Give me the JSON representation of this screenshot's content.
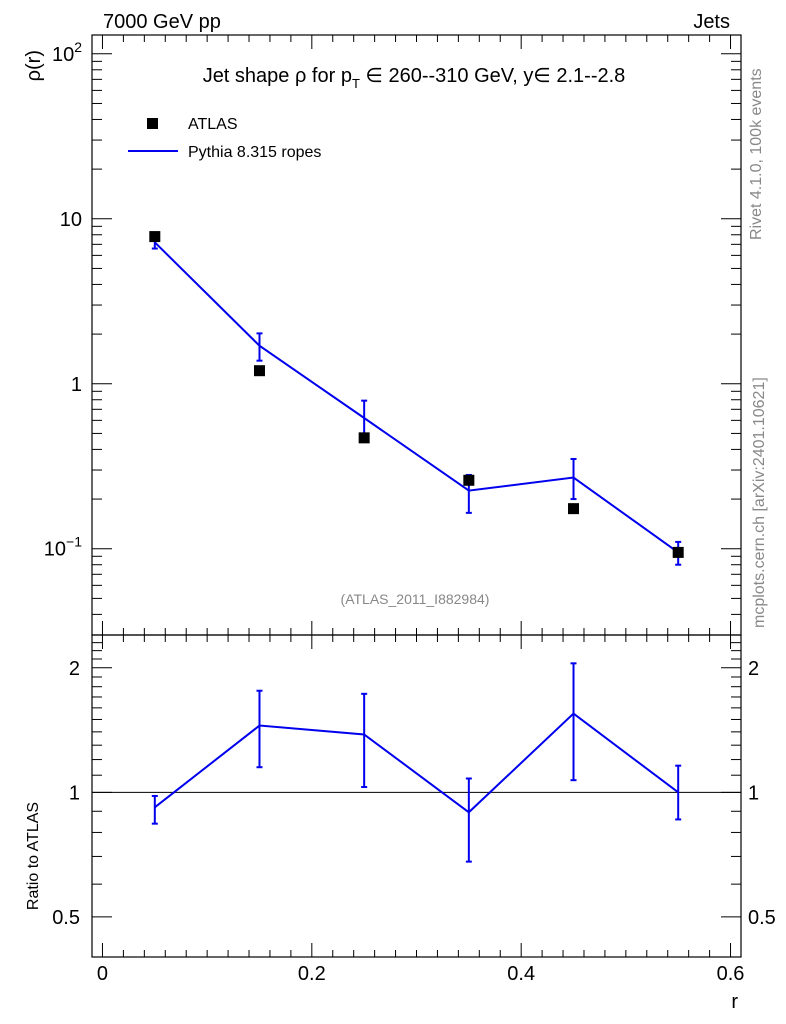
{
  "header": {
    "left": "7000 GeV pp",
    "right": "Jets"
  },
  "side_text": {
    "rivet": "Rivet 4.1.0,  100k events",
    "mcplots": "mcplots.cern.ch [arXiv:2401.10621]"
  },
  "watermark": "(ATLAS_2011_I882984)",
  "colors": {
    "mc": "#0000ee",
    "data": "#000000",
    "grey": "#888888"
  },
  "chart_data": [
    {
      "type": "line",
      "title_parts": {
        "pre": "Jet shape ",
        "rho": "ρ",
        "for": " for p",
        "sub": "T",
        "elem": " ∈ ",
        "range": "260--310 GeV, y",
        "elem2": "∈ ",
        "yrange": "2.1--2.8"
      },
      "ylabel": "ρ(r)",
      "yscale": "log",
      "ylim": [
        0.03,
        130
      ],
      "xlim": [
        -0.01,
        0.61
      ],
      "yticks": [
        {
          "v": 100,
          "base": "10",
          "exp": "2"
        },
        {
          "v": 10,
          "label": "10"
        },
        {
          "v": 1,
          "label": "1"
        },
        {
          "v": 0.1,
          "base": "10",
          "exp": "−1"
        }
      ],
      "legend": {
        "data_label": "ATLAS",
        "mc_label": "Pythia 8.315 ropes",
        "position": "top-left"
      },
      "series": [
        {
          "name": "ATLAS",
          "style": "markers",
          "x": [
            0.05,
            0.15,
            0.25,
            0.35,
            0.45,
            0.55
          ],
          "y": [
            7.8,
            1.2,
            0.47,
            0.26,
            0.175,
            0.095
          ]
        },
        {
          "name": "Pythia 8.315 ropes",
          "style": "line",
          "x": [
            0.05,
            0.15,
            0.25,
            0.35,
            0.45,
            0.55
          ],
          "y": [
            7.2,
            1.7,
            0.62,
            0.225,
            0.27,
            0.095
          ],
          "yerr_lo": [
            6.6,
            1.38,
            0.47,
            0.165,
            0.2,
            0.08
          ],
          "yerr_hi": [
            7.7,
            2.02,
            0.79,
            0.28,
            0.35,
            0.11
          ]
        }
      ]
    },
    {
      "type": "line",
      "ylabel": "Ratio to ATLAS",
      "xlabel": "r",
      "yscale": "log",
      "ylim": [
        0.4,
        2.4
      ],
      "xlim": [
        -0.01,
        0.61
      ],
      "yticks": [
        {
          "v": 2,
          "label": "2"
        },
        {
          "v": 1,
          "label": "1"
        },
        {
          "v": 0.5,
          "label": "0.5"
        }
      ],
      "xticks": [
        {
          "v": 0,
          "label": "0"
        },
        {
          "v": 0.2,
          "label": "0.2"
        },
        {
          "v": 0.4,
          "label": "0.4"
        },
        {
          "v": 0.6,
          "label": "0.6"
        }
      ],
      "reference": 1,
      "series": [
        {
          "name": "Pythia 8.315 ropes / ATLAS",
          "x": [
            0.05,
            0.15,
            0.25,
            0.35,
            0.45,
            0.55
          ],
          "y": [
            0.92,
            1.45,
            1.38,
            0.895,
            1.55,
            1.0
          ],
          "yerr_lo": [
            0.84,
            1.15,
            1.03,
            0.68,
            1.07,
            0.86
          ],
          "yerr_hi": [
            0.98,
            1.76,
            1.73,
            1.08,
            2.05,
            1.16
          ]
        }
      ]
    }
  ]
}
